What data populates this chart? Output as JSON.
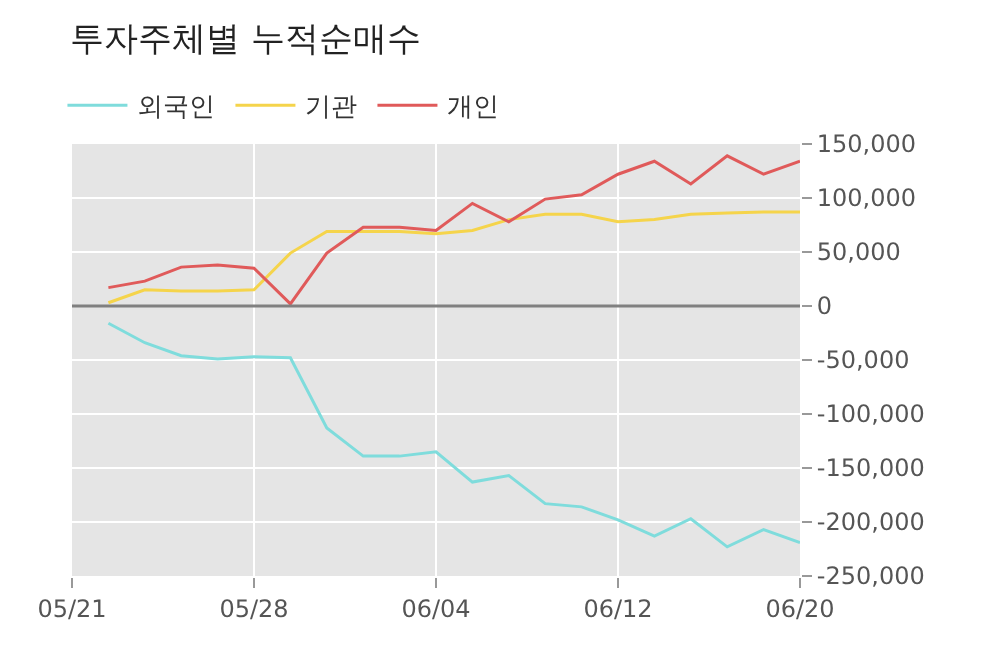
{
  "chart_data": {
    "type": "line",
    "title": "투자주체별 누적순매수",
    "categories": [
      "05/21",
      null,
      null,
      null,
      null,
      "05/28",
      null,
      null,
      null,
      null,
      "06/04",
      null,
      null,
      null,
      null,
      "06/12",
      null,
      null,
      null,
      null,
      "06/20"
    ],
    "series": [
      {
        "name": "외국인",
        "color": "#7fdcdc",
        "values": [
          null,
          -16000,
          -34000,
          -46000,
          -49000,
          -47000,
          -48000,
          -113000,
          -139000,
          -139000,
          -135000,
          -163000,
          -157000,
          -183000,
          -186000,
          -198000,
          -213000,
          -197000,
          -223000,
          -207000,
          -219000
        ]
      },
      {
        "name": "기관",
        "color": "#f5d44b",
        "values": [
          null,
          3000,
          15000,
          14000,
          14000,
          15000,
          49000,
          69000,
          69000,
          69000,
          67000,
          70000,
          80000,
          85000,
          85000,
          78000,
          80000,
          85000,
          86000,
          87000,
          87000
        ]
      },
      {
        "name": "개인",
        "color": "#e05a5a",
        "values": [
          null,
          17000,
          23000,
          36000,
          38000,
          35000,
          2000,
          49000,
          73000,
          73000,
          70000,
          95000,
          78000,
          99000,
          103000,
          122000,
          134000,
          113000,
          139000,
          122000,
          134000
        ]
      }
    ],
    "ylim": [
      -250000,
      150000
    ],
    "yticks": [
      {
        "value": -250000,
        "label": "-250,000"
      },
      {
        "value": -200000,
        "label": "-200,000"
      },
      {
        "value": -150000,
        "label": "-150,000"
      },
      {
        "value": -100000,
        "label": "-100,000"
      },
      {
        "value": -50000,
        "label": "-50,000"
      },
      {
        "value": 0,
        "label": "0"
      },
      {
        "value": 50000,
        "label": "50,000"
      },
      {
        "value": 100000,
        "label": "100,000"
      },
      {
        "value": 150000,
        "label": "150,000"
      }
    ],
    "ref_lines": [
      {
        "axis": "y",
        "value": 0,
        "color": "#808080"
      }
    ],
    "grid": true,
    "legend": "top left",
    "marker": "none",
    "line_style": "solid"
  }
}
